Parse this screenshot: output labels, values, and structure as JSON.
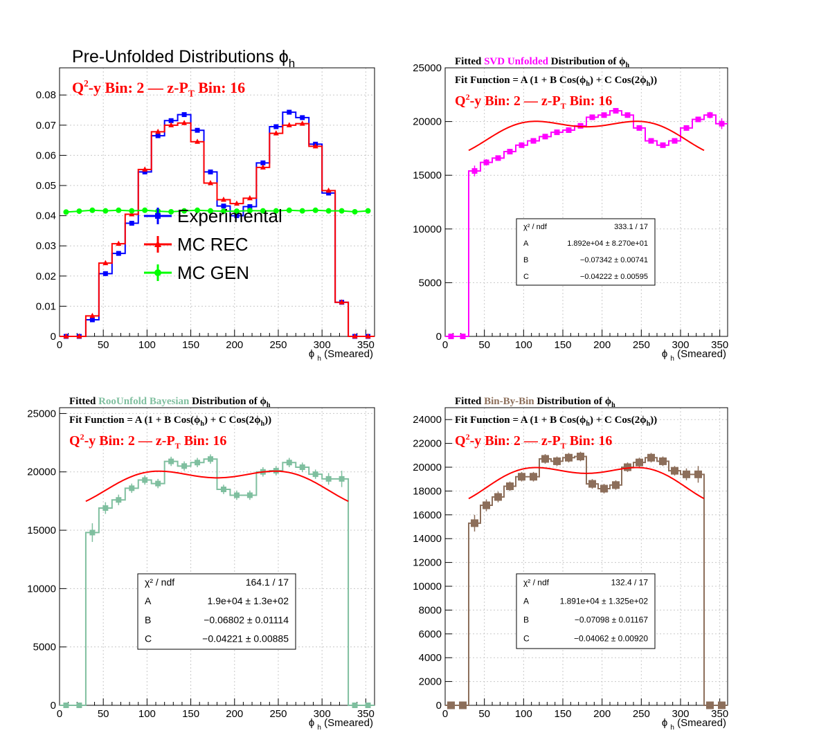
{
  "chart_data": [
    {
      "id": "prefold",
      "type": "line",
      "title": "Pre-Unfolded Distributions",
      "title_symbol": "ϕ",
      "title_sub": "h",
      "bin_label": {
        "q2": "Q",
        "q2_sup": "2",
        "q2_rest": "-y Bin: 2",
        "dash": "—",
        "z": "z-P",
        "z_sub": "T",
        "z_rest": " Bin: 16"
      },
      "xlabel": "ϕ",
      "xlabel_sub": "h",
      "xlabel_rest": "(Smeared)",
      "xlim": [
        0,
        360
      ],
      "ylim": [
        0,
        0.089
      ],
      "xticks": [
        0,
        50,
        100,
        150,
        200,
        250,
        300,
        350
      ],
      "yticks": [
        0,
        0.01,
        0.02,
        0.03,
        0.04,
        0.05,
        0.06,
        0.07,
        0.08
      ],
      "ytick_labels": [
        "0",
        "0.01",
        "0.02",
        "0.03",
        "0.04",
        "0.05",
        "0.06",
        "0.07",
        "0.08"
      ],
      "x": [
        7.5,
        22.5,
        37.5,
        52.5,
        67.5,
        82.5,
        97.5,
        112.5,
        127.5,
        142.5,
        157.5,
        172.5,
        187.5,
        202.5,
        217.5,
        232.5,
        247.5,
        262.5,
        277.5,
        292.5,
        307.5,
        322.5,
        337.5,
        352.5
      ],
      "legend_position": "center",
      "series": [
        {
          "name": "Experimental",
          "color": "#0000ff",
          "marker": "square",
          "values": [
            0,
            0,
            0.0055,
            0.0208,
            0.0275,
            0.0375,
            0.0545,
            0.0665,
            0.0715,
            0.0735,
            0.0683,
            0.0545,
            0.0432,
            0.04,
            0.043,
            0.0575,
            0.0695,
            0.0743,
            0.0725,
            0.0637,
            0.0475,
            0.0113,
            0,
            0
          ]
        },
        {
          "name": "MC REC",
          "color": "#ff0000",
          "marker": "triangle",
          "values": [
            0,
            0,
            0.0068,
            0.0243,
            0.0307,
            0.0405,
            0.0553,
            0.0678,
            0.07,
            0.0707,
            0.0645,
            0.0508,
            0.0453,
            0.044,
            0.0458,
            0.056,
            0.0673,
            0.07,
            0.0705,
            0.063,
            0.0483,
            0.0113,
            0,
            0
          ]
        },
        {
          "name": "MC GEN",
          "color": "#00ff00",
          "marker": "circle",
          "values": [
            0.0412,
            0.0415,
            0.0418,
            0.0416,
            0.0418,
            0.0416,
            0.0418,
            0.0415,
            0.0413,
            0.0416,
            0.0418,
            0.0416,
            0.0415,
            0.0415,
            0.0417,
            0.0416,
            0.0416,
            0.0418,
            0.0416,
            0.0418,
            0.0416,
            0.0416,
            0.0413,
            0.0416
          ]
        }
      ]
    },
    {
      "id": "svd",
      "type": "line",
      "title_fitted": "Fitted",
      "title_method": "SVD Unfolded",
      "title_method_color": "#ff00ff",
      "title_rest": "Distribution of",
      "title_symbol": "ϕ",
      "title_sub": "h",
      "fit_function": {
        "pre": "Fit Function = A (1 + B Cos(",
        "sym": "ϕ",
        "sub": "h",
        "mid": ") + C Cos(2",
        "sym2": "ϕ",
        "sub2": "h",
        "post": "))"
      },
      "bin_label": {
        "q2": "Q",
        "q2_sup": "2",
        "q2_rest": "-y Bin: 2",
        "dash": "—",
        "z": "z-P",
        "z_sub": "T",
        "z_rest": " Bin: 16"
      },
      "xlabel": "ϕ",
      "xlabel_sub": "h",
      "xlabel_rest": "(Smeared)",
      "xlim": [
        0,
        360
      ],
      "ylim": [
        0,
        25000
      ],
      "xticks": [
        0,
        50,
        100,
        150,
        200,
        250,
        300,
        350
      ],
      "yticks": [
        0,
        5000,
        10000,
        15000,
        20000,
        25000
      ],
      "ytick_labels": [
        "0",
        "5000",
        "10000",
        "15000",
        "20000",
        "25000"
      ],
      "x": [
        7.5,
        22.5,
        37.5,
        52.5,
        67.5,
        82.5,
        97.5,
        112.5,
        127.5,
        142.5,
        157.5,
        172.5,
        187.5,
        202.5,
        217.5,
        232.5,
        247.5,
        262.5,
        277.5,
        292.5,
        307.5,
        322.5,
        337.5,
        352.5
      ],
      "series": [
        {
          "name": "",
          "color": "#ff00ff",
          "marker": "square",
          "values": [
            0,
            0,
            15400,
            16200,
            16600,
            17200,
            17800,
            18200,
            18600,
            19000,
            19200,
            19600,
            20400,
            20600,
            21000,
            20600,
            19400,
            18200,
            17800,
            18200,
            19400,
            20200,
            20600,
            19800
          ],
          "errors": [
            0,
            0,
            500,
            300,
            250,
            250,
            250,
            250,
            250,
            250,
            250,
            250,
            250,
            250,
            250,
            250,
            250,
            250,
            250,
            250,
            250,
            250,
            300,
            500
          ]
        }
      ],
      "fit": {
        "A": 18920,
        "B": -0.07342,
        "C": -0.04222,
        "xrange": [
          30,
          330
        ],
        "color": "#ff0000"
      },
      "stats": {
        "rows": [
          [
            "χ² / ndf",
            "333.1 / 17"
          ],
          [
            "A",
            "1.892e+04  ± 8.270e+01"
          ],
          [
            "B",
            "−0.07342  ± 0.00741"
          ],
          [
            "C",
            "−0.04222  ± 0.00595"
          ]
        ]
      }
    },
    {
      "id": "bayes",
      "type": "line",
      "title_fitted": "Fitted",
      "title_method": "RooUnfold Bayesian",
      "title_method_color": "#7fbf9f",
      "title_rest": "Distribution of",
      "title_symbol": "ϕ",
      "title_sub": "h",
      "fit_function": {
        "pre": "Fit Function = A (1 + B Cos(",
        "sym": "ϕ",
        "sub": "h",
        "mid": ") + C Cos(2",
        "sym2": "ϕ",
        "sub2": "h",
        "post": "))"
      },
      "bin_label": {
        "q2": "Q",
        "q2_sup": "2",
        "q2_rest": "-y Bin: 2",
        "dash": "—",
        "z": "z-P",
        "z_sub": "T",
        "z_rest": " Bin: 16"
      },
      "xlabel": "ϕ",
      "xlabel_sub": "h",
      "xlabel_rest": "(Smeared)",
      "xlim": [
        0,
        360
      ],
      "ylim": [
        0,
        25500
      ],
      "xticks": [
        0,
        50,
        100,
        150,
        200,
        250,
        300,
        350
      ],
      "yticks": [
        0,
        5000,
        10000,
        15000,
        20000,
        25000
      ],
      "ytick_labels": [
        "0",
        "5000",
        "10000",
        "15000",
        "20000",
        "25000"
      ],
      "x": [
        7.5,
        22.5,
        37.5,
        52.5,
        67.5,
        82.5,
        97.5,
        112.5,
        127.5,
        142.5,
        157.5,
        172.5,
        187.5,
        202.5,
        217.5,
        232.5,
        247.5,
        262.5,
        277.5,
        292.5,
        307.5,
        322.5,
        337.5,
        352.5
      ],
      "series": [
        {
          "name": "",
          "color": "#7fbf9f",
          "marker": "square",
          "values": [
            0,
            0,
            14800,
            16900,
            17600,
            18600,
            19300,
            19000,
            20900,
            20500,
            20800,
            21100,
            18500,
            18000,
            18000,
            20000,
            20100,
            20800,
            20400,
            19800,
            19400,
            19400,
            0,
            0
          ],
          "errors": [
            0,
            0,
            800,
            500,
            450,
            400,
            400,
            400,
            400,
            400,
            400,
            400,
            400,
            400,
            400,
            400,
            400,
            400,
            400,
            400,
            500,
            700,
            0,
            0
          ]
        }
      ],
      "fit": {
        "A": 19000,
        "B": -0.06802,
        "C": -0.04221,
        "xrange": [
          30,
          330
        ],
        "color": "#ff0000"
      },
      "stats": {
        "rows": [
          [
            "χ² / ndf",
            "164.1 / 17"
          ],
          [
            "A",
            "1.9e+04 ± 1.3e+02"
          ],
          [
            "B",
            "−0.06802 ± 0.01114"
          ],
          [
            "C",
            "−0.04221 ± 0.00885"
          ]
        ]
      }
    },
    {
      "id": "bbb",
      "type": "line",
      "title_fitted": "Fitted",
      "title_method": "Bin-By-Bin",
      "title_method_color": "#8c6e5a",
      "title_rest": "Distribution of",
      "title_symbol": "ϕ",
      "title_sub": "h",
      "fit_function": {
        "pre": "Fit Function = A (1 + B Cos(",
        "sym": "ϕ",
        "sub": "h",
        "mid": ") + C Cos(2",
        "sym2": "ϕ",
        "sub2": "h",
        "post": "))"
      },
      "bin_label": {
        "q2": "Q",
        "q2_sup": "2",
        "q2_rest": "-y Bin: 2",
        "dash": "—",
        "z": "z-P",
        "z_sub": "T",
        "z_rest": " Bin: 16"
      },
      "xlabel": "ϕ",
      "xlabel_sub": "h",
      "xlabel_rest": "(Smeared)",
      "xlim": [
        0,
        360
      ],
      "ylim": [
        0,
        25000
      ],
      "xticks": [
        0,
        50,
        100,
        150,
        200,
        250,
        300,
        350
      ],
      "yticks": [
        0,
        2000,
        4000,
        6000,
        8000,
        10000,
        12000,
        14000,
        16000,
        18000,
        20000,
        22000,
        24000
      ],
      "ytick_labels": [
        "0",
        "2000",
        "4000",
        "6000",
        "8000",
        "10000",
        "12000",
        "14000",
        "16000",
        "18000",
        "20000",
        "22000",
        "24000"
      ],
      "x": [
        7.5,
        22.5,
        37.5,
        52.5,
        67.5,
        82.5,
        97.5,
        112.5,
        127.5,
        142.5,
        157.5,
        172.5,
        187.5,
        202.5,
        217.5,
        232.5,
        247.5,
        262.5,
        277.5,
        292.5,
        307.5,
        322.5,
        337.5,
        352.5
      ],
      "series": [
        {
          "name": "",
          "color": "#8c6e5a",
          "marker": "square",
          "values": [
            0,
            0,
            15300,
            16800,
            17500,
            18400,
            19200,
            19200,
            20700,
            20500,
            20800,
            20900,
            18600,
            18200,
            18500,
            20000,
            20400,
            20800,
            20500,
            19700,
            19400,
            19400,
            0,
            0
          ],
          "errors": [
            0,
            0,
            700,
            500,
            450,
            400,
            400,
            400,
            400,
            400,
            400,
            400,
            400,
            400,
            400,
            400,
            400,
            400,
            400,
            400,
            500,
            700,
            0,
            0
          ]
        }
      ],
      "fit": {
        "A": 18910,
        "B": -0.07098,
        "C": -0.04062,
        "xrange": [
          30,
          330
        ],
        "color": "#ff0000"
      },
      "stats": {
        "rows": [
          [
            "χ² / ndf",
            "132.4 / 17"
          ],
          [
            "A",
            "1.891e+04 ± 1.325e+02"
          ],
          [
            "B",
            "−0.07098 ± 0.01167"
          ],
          [
            "C",
            "−0.04062 ± 0.00920"
          ]
        ]
      }
    }
  ]
}
